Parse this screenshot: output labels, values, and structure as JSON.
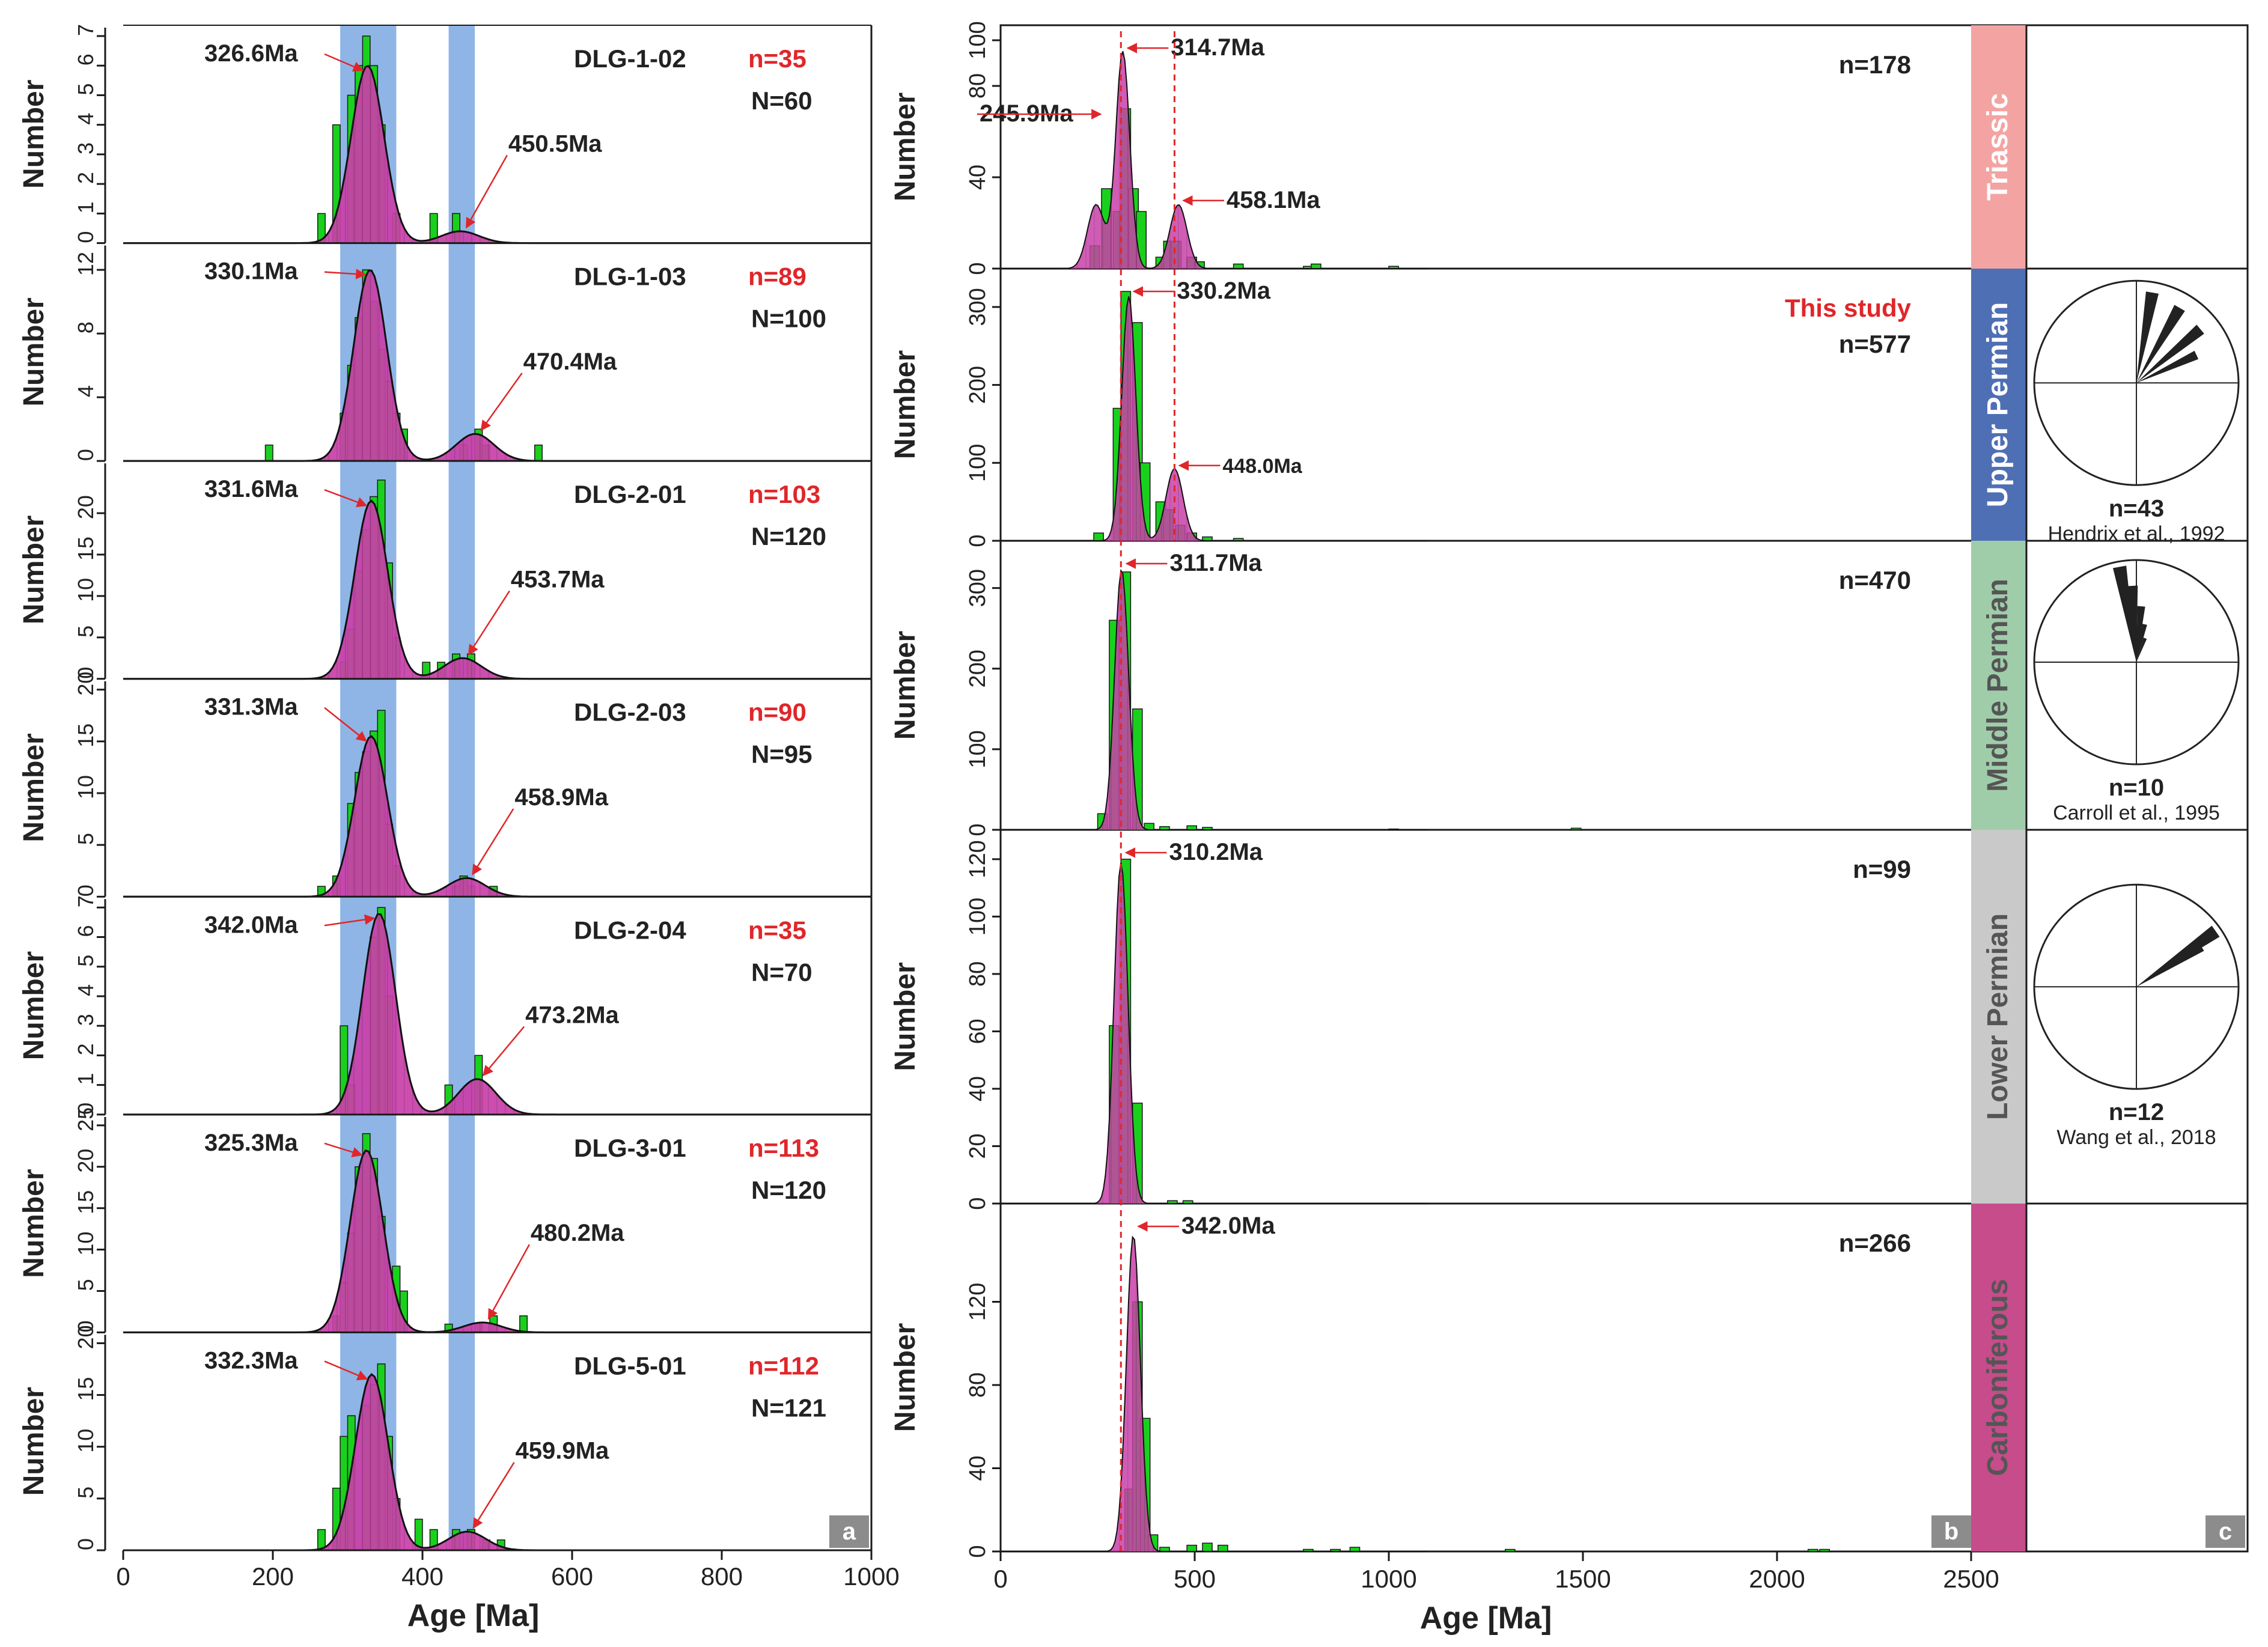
{
  "colors": {
    "kde_fill": "#c93fa8",
    "kde_hatch": "#8a2f78",
    "hist_bar": "#19d11d",
    "highlight_band": "#7aa8e0",
    "annotation": "#e0262a",
    "axis": "#1a1a1a",
    "label_box": "#8c8c8c",
    "triassic": "#f4a3a3",
    "upper_permian": "#4f6fb5",
    "middle_permian": "#9fcda9",
    "lower_permian": "#c9c9c9",
    "carboniferous": "#c64c8b"
  },
  "panel_labels": {
    "a": "a",
    "b": "b",
    "c": "c"
  },
  "chart_data": [
    {
      "panel": "a",
      "type": "bar",
      "xlabel": "Age [Ma]",
      "ylabel": "Number",
      "xlim": [
        0,
        1000
      ],
      "xticks": [
        0,
        200,
        400,
        600,
        800,
        1000
      ],
      "highlight_ranges_ma": [
        [
          290,
          365
        ],
        [
          435,
          470
        ]
      ],
      "samples": [
        {
          "name": "DLG-1-02",
          "n_label": "n=35",
          "N_label": "N=60",
          "ylim": [
            0,
            7
          ],
          "yticks": [
            0,
            1,
            2,
            3,
            4,
            5,
            6,
            7
          ],
          "peaks": [
            {
              "age": 326.6,
              "label": "326.6Ma",
              "height": 6.0
            },
            {
              "age": 450.5,
              "label": "450.5Ma",
              "height": 0.4
            }
          ],
          "hist": [
            [
              260,
              1
            ],
            [
              280,
              4
            ],
            [
              300,
              5
            ],
            [
              310,
              6
            ],
            [
              320,
              7
            ],
            [
              330,
              6
            ],
            [
              340,
              4
            ],
            [
              360,
              1
            ],
            [
              410,
              1
            ],
            [
              440,
              1
            ]
          ]
        },
        {
          "name": "DLG-1-03",
          "n_label": "n=89",
          "N_label": "N=100",
          "ylim": [
            0,
            13
          ],
          "yticks": [
            0,
            4,
            8,
            12
          ],
          "peaks": [
            {
              "age": 330.1,
              "label": "330.1Ma",
              "height": 12.0
            },
            {
              "age": 470.4,
              "label": "470.4Ma",
              "height": 1.7
            }
          ],
          "hist": [
            [
              190,
              1
            ],
            [
              290,
              3
            ],
            [
              300,
              6
            ],
            [
              310,
              9
            ],
            [
              320,
              12
            ],
            [
              330,
              10
            ],
            [
              340,
              7
            ],
            [
              350,
              5
            ],
            [
              360,
              3
            ],
            [
              370,
              2
            ],
            [
              450,
              1
            ],
            [
              470,
              2
            ],
            [
              480,
              1
            ],
            [
              550,
              1
            ]
          ]
        },
        {
          "name": "DLG-2-01",
          "n_label": "n=103",
          "N_label": "N=120",
          "ylim": [
            0,
            25
          ],
          "yticks": [
            0,
            5,
            10,
            15,
            20
          ],
          "peaks": [
            {
              "age": 331.6,
              "label": "331.6Ma",
              "height": 21.5
            },
            {
              "age": 453.7,
              "label": "453.7Ma",
              "height": 2.5
            }
          ],
          "hist": [
            [
              290,
              2
            ],
            [
              300,
              6
            ],
            [
              310,
              13
            ],
            [
              320,
              18
            ],
            [
              330,
              22
            ],
            [
              340,
              24
            ],
            [
              350,
              14
            ],
            [
              360,
              5
            ],
            [
              400,
              2
            ],
            [
              420,
              2
            ],
            [
              440,
              3
            ],
            [
              460,
              3
            ]
          ]
        },
        {
          "name": "DLG-2-03",
          "n_label": "n=90",
          "N_label": "N=95",
          "ylim": [
            0,
            20
          ],
          "yticks": [
            0,
            5,
            10,
            15,
            20
          ],
          "peaks": [
            {
              "age": 331.3,
              "label": "331.3Ma",
              "height": 15.5
            },
            {
              "age": 458.9,
              "label": "458.9Ma",
              "height": 1.8
            }
          ],
          "hist": [
            [
              260,
              1
            ],
            [
              280,
              2
            ],
            [
              300,
              9
            ],
            [
              310,
              12
            ],
            [
              320,
              14
            ],
            [
              330,
              16
            ],
            [
              340,
              18
            ],
            [
              350,
              7
            ],
            [
              360,
              3
            ],
            [
              440,
              1
            ],
            [
              450,
              2
            ],
            [
              460,
              1
            ],
            [
              490,
              1
            ]
          ]
        },
        {
          "name": "DLG-2-04",
          "n_label": "n=35",
          "N_label": "N=70",
          "ylim": [
            0,
            7
          ],
          "yticks": [
            0,
            1,
            2,
            3,
            4,
            5,
            6,
            7
          ],
          "peaks": [
            {
              "age": 342.0,
              "label": "342.0Ma",
              "height": 6.8
            },
            {
              "age": 473.2,
              "label": "473.2Ma",
              "height": 1.2
            }
          ],
          "hist": [
            [
              290,
              3
            ],
            [
              300,
              1
            ],
            [
              330,
              6
            ],
            [
              340,
              7
            ],
            [
              350,
              4
            ],
            [
              430,
              1
            ],
            [
              470,
              2
            ]
          ]
        },
        {
          "name": "DLG-3-01",
          "n_label": "n=113",
          "N_label": "N=120",
          "ylim": [
            0,
            25
          ],
          "yticks": [
            0,
            5,
            10,
            15,
            20,
            25
          ],
          "peaks": [
            {
              "age": 325.3,
              "label": "325.3Ma",
              "height": 22.0
            },
            {
              "age": 480.2,
              "label": "480.2Ma",
              "height": 1.2
            }
          ],
          "hist": [
            [
              280,
              2
            ],
            [
              290,
              6
            ],
            [
              300,
              12
            ],
            [
              310,
              20
            ],
            [
              320,
              24
            ],
            [
              330,
              21
            ],
            [
              340,
              14
            ],
            [
              360,
              8
            ],
            [
              370,
              5
            ],
            [
              430,
              1
            ],
            [
              470,
              1
            ],
            [
              490,
              2
            ],
            [
              530,
              2
            ]
          ]
        },
        {
          "name": "DLG-5-01",
          "n_label": "n=112",
          "N_label": "N=121",
          "ylim": [
            0,
            20
          ],
          "yticks": [
            0,
            5,
            10,
            15,
            20
          ],
          "peaks": [
            {
              "age": 332.3,
              "label": "332.3Ma",
              "height": 17.0
            },
            {
              "age": 459.9,
              "label": "459.9Ma",
              "height": 1.8
            }
          ],
          "hist": [
            [
              260,
              2
            ],
            [
              280,
              6
            ],
            [
              290,
              11
            ],
            [
              300,
              13
            ],
            [
              320,
              14
            ],
            [
              330,
              16
            ],
            [
              340,
              18
            ],
            [
              350,
              11
            ],
            [
              360,
              5
            ],
            [
              390,
              3
            ],
            [
              410,
              2
            ],
            [
              440,
              2
            ],
            [
              460,
              2
            ],
            [
              480,
              1
            ],
            [
              500,
              1
            ]
          ]
        }
      ]
    },
    {
      "panel": "b",
      "type": "bar",
      "xlabel": "Age [Ma]",
      "ylabel": "Number",
      "xlim": [
        0,
        2500
      ],
      "xticks": [
        0,
        500,
        1000,
        1500,
        2000,
        2500
      ],
      "ref_lines_ma": [
        310,
        448
      ],
      "study_label": "This study",
      "periods": [
        {
          "name": "Triassic",
          "n_label": "n=178",
          "ylim": [
            0,
            100
          ],
          "yticks": [
            0,
            40,
            80,
            100
          ],
          "ytick_labels": [
            "0",
            "40",
            "80",
            "100"
          ],
          "peaks": [
            {
              "age": 314.7,
              "label": "314.7Ma"
            },
            {
              "age": 245.9,
              "label": "245.9Ma"
            },
            {
              "age": 458.1,
              "label": "458.1Ma"
            }
          ],
          "hist": [
            [
              230,
              10
            ],
            [
              260,
              35
            ],
            [
              290,
              25
            ],
            [
              310,
              70
            ],
            [
              330,
              35
            ],
            [
              350,
              25
            ],
            [
              400,
              5
            ],
            [
              420,
              12
            ],
            [
              440,
              12
            ],
            [
              480,
              5
            ],
            [
              500,
              3
            ],
            [
              600,
              2
            ],
            [
              780,
              1
            ],
            [
              800,
              2
            ],
            [
              1000,
              1
            ]
          ]
        },
        {
          "name": "Upper Permian",
          "n_label": "n=577",
          "ylim": [
            0,
            330
          ],
          "yticks": [
            0,
            100,
            200,
            300
          ],
          "ytick_labels": [
            "0",
            "100",
            "200",
            "300"
          ],
          "peaks": [
            {
              "age": 330.2,
              "label": "330.2Ma"
            },
            {
              "age": 448.0,
              "label": "448.0Ma"
            }
          ],
          "hist": [
            [
              240,
              10
            ],
            [
              290,
              170
            ],
            [
              310,
              320
            ],
            [
              340,
              280
            ],
            [
              360,
              100
            ],
            [
              400,
              50
            ],
            [
              420,
              40
            ],
            [
              450,
              20
            ],
            [
              480,
              10
            ],
            [
              520,
              5
            ],
            [
              600,
              3
            ]
          ],
          "rose": {
            "n_label": "n=43",
            "source": "Hendrix et al., 1992",
            "petals": [
              [
                10,
                0.9
              ],
              [
                30,
                0.85
              ],
              [
                50,
                0.82
              ],
              [
                65,
                0.65
              ]
            ]
          }
        },
        {
          "name": "Middle Permian",
          "n_label": "n=470",
          "ylim": [
            0,
            340
          ],
          "yticks": [
            0,
            100,
            200,
            300
          ],
          "ytick_labels": [
            "0",
            "100",
            "200",
            "300"
          ],
          "peaks": [
            {
              "age": 311.7,
              "label": "311.7Ma"
            }
          ],
          "hist": [
            [
              250,
              20
            ],
            [
              280,
              260
            ],
            [
              310,
              320
            ],
            [
              340,
              150
            ],
            [
              370,
              8
            ],
            [
              410,
              4
            ],
            [
              480,
              5
            ],
            [
              520,
              3
            ],
            [
              1000,
              1
            ],
            [
              1470,
              2
            ]
          ],
          "rose": {
            "n_label": "n=10",
            "source": "Carroll et al., 1995",
            "petals": [
              [
                350,
                0.95
              ],
              [
                357,
                0.75
              ],
              [
                5,
                0.55
              ],
              [
                12,
                0.38
              ],
              [
                20,
                0.25
              ]
            ]
          }
        },
        {
          "name": "Lower Permian",
          "n_label": "n=99",
          "ylim": [
            0,
            125
          ],
          "yticks": [
            0,
            20,
            40,
            60,
            80,
            100,
            120
          ],
          "ytick_labels": [
            "0",
            "20",
            "40",
            "60",
            "80",
            "100",
            "120"
          ],
          "peaks": [
            {
              "age": 310.2,
              "label": "310.2Ma"
            }
          ],
          "hist": [
            [
              280,
              62
            ],
            [
              310,
              120
            ],
            [
              340,
              35
            ],
            [
              430,
              1
            ],
            [
              470,
              1
            ]
          ],
          "rose": {
            "n_label": "n=12",
            "source": "Wang et al., 2018",
            "petals": [
              [
                55,
                0.95
              ],
              [
                58,
                0.75
              ]
            ]
          }
        },
        {
          "name": "Carboniferous",
          "n_label": "n=266",
          "ylim": [
            0,
            160
          ],
          "yticks": [
            0,
            40,
            80,
            120
          ],
          "ytick_labels": [
            "0",
            "40",
            "80",
            "120"
          ],
          "peaks": [
            {
              "age": 342.0,
              "label": "342.0Ma"
            }
          ],
          "hist": [
            [
              320,
              30
            ],
            [
              340,
              120
            ],
            [
              360,
              64
            ],
            [
              380,
              8
            ],
            [
              410,
              2
            ],
            [
              480,
              3
            ],
            [
              520,
              4
            ],
            [
              560,
              3
            ],
            [
              780,
              1
            ],
            [
              850,
              1
            ],
            [
              900,
              2
            ],
            [
              1300,
              1
            ],
            [
              2080,
              1
            ],
            [
              2110,
              1
            ]
          ]
        }
      ]
    }
  ]
}
